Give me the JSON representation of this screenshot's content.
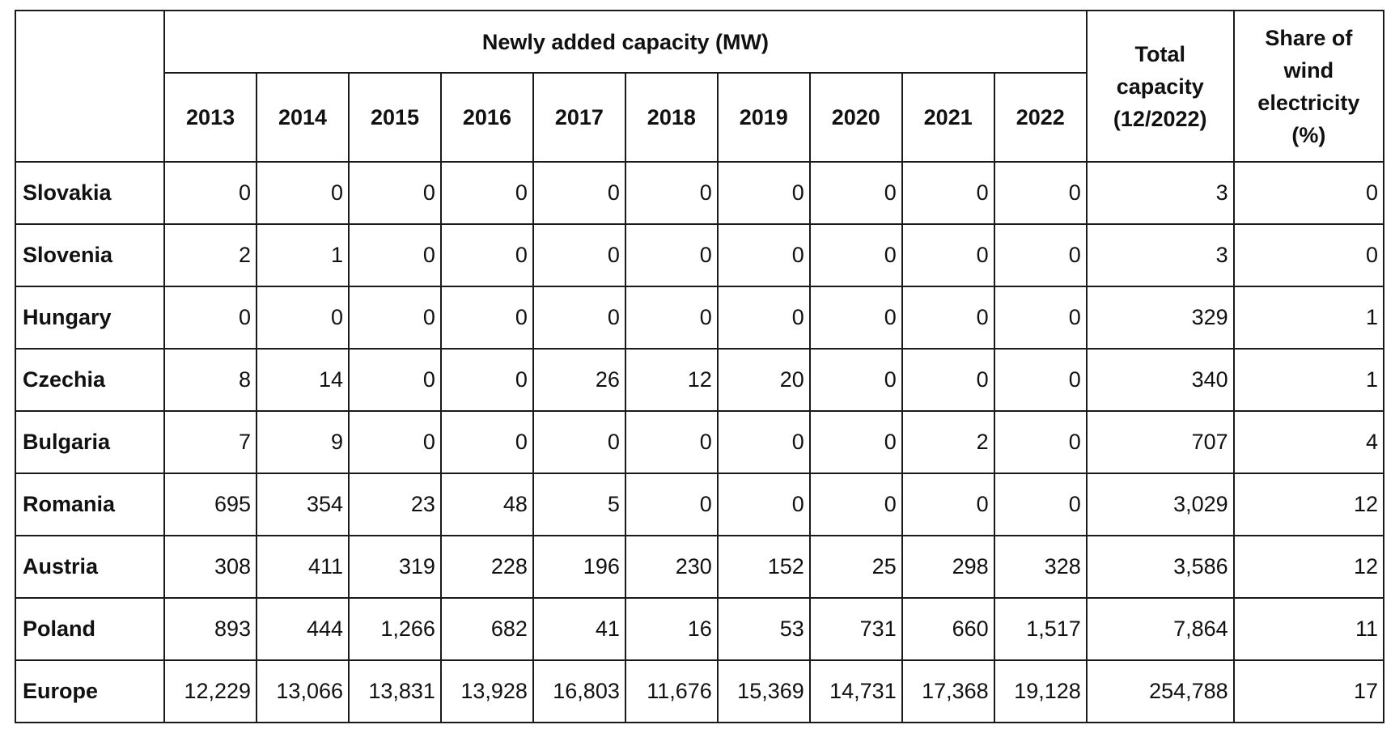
{
  "table": {
    "group_header": "Newly added capacity (MW)",
    "total_header_lines": [
      "Total",
      "capacity",
      "(12/2022)"
    ],
    "share_header_lines": [
      "Share of",
      "wind",
      "electricity",
      "(%)"
    ],
    "years": [
      "2013",
      "2014",
      "2015",
      "2016",
      "2017",
      "2018",
      "2019",
      "2020",
      "2021",
      "2022"
    ],
    "rows": [
      {
        "country": "Slovakia",
        "added": [
          "0",
          "0",
          "0",
          "0",
          "0",
          "0",
          "0",
          "0",
          "0",
          "0"
        ],
        "total": "3",
        "share": "0"
      },
      {
        "country": "Slovenia",
        "added": [
          "2",
          "1",
          "0",
          "0",
          "0",
          "0",
          "0",
          "0",
          "0",
          "0"
        ],
        "total": "3",
        "share": "0"
      },
      {
        "country": "Hungary",
        "added": [
          "0",
          "0",
          "0",
          "0",
          "0",
          "0",
          "0",
          "0",
          "0",
          "0"
        ],
        "total": "329",
        "share": "1"
      },
      {
        "country": "Czechia",
        "added": [
          "8",
          "14",
          "0",
          "0",
          "26",
          "12",
          "20",
          "0",
          "0",
          "0"
        ],
        "total": "340",
        "share": "1"
      },
      {
        "country": "Bulgaria",
        "added": [
          "7",
          "9",
          "0",
          "0",
          "0",
          "0",
          "0",
          "0",
          "2",
          "0"
        ],
        "total": "707",
        "share": "4"
      },
      {
        "country": "Romania",
        "added": [
          "695",
          "354",
          "23",
          "48",
          "5",
          "0",
          "0",
          "0",
          "0",
          "0"
        ],
        "total": "3,029",
        "share": "12"
      },
      {
        "country": "Austria",
        "added": [
          "308",
          "411",
          "319",
          "228",
          "196",
          "230",
          "152",
          "25",
          "298",
          "328"
        ],
        "total": "3,586",
        "share": "12"
      },
      {
        "country": "Poland",
        "added": [
          "893",
          "444",
          "1,266",
          "682",
          "41",
          "16",
          "53",
          "731",
          "660",
          "1,517"
        ],
        "total": "7,864",
        "share": "11"
      },
      {
        "country": "Europe",
        "added": [
          "12,229",
          "13,066",
          "13,831",
          "13,928",
          "16,803",
          "11,676",
          "15,369",
          "14,731",
          "17,368",
          "19,128"
        ],
        "total": "254,788",
        "share": "17"
      }
    ]
  }
}
